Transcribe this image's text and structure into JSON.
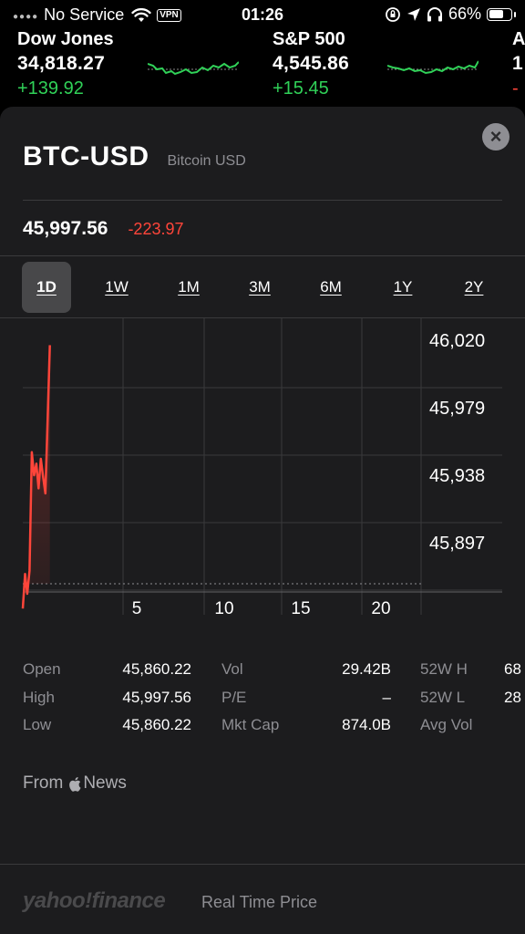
{
  "status_bar": {
    "carrier": "No Service",
    "vpn": "VPN",
    "time": "01:26",
    "battery": "66%"
  },
  "tickers": [
    {
      "name": "Dow Jones",
      "price": "34,818.27",
      "change": "+139.92"
    },
    {
      "name": "S&P 500",
      "price": "4,545.86",
      "change": "+15.45"
    },
    {
      "name": "A",
      "price": "1",
      "change": "-"
    }
  ],
  "header": {
    "symbol": "BTC-USD",
    "name": "Bitcoin USD",
    "close_icon": "close-icon"
  },
  "quote": {
    "price": "45,997.56",
    "change": "-223.97"
  },
  "ranges": [
    "1D",
    "1W",
    "1M",
    "3M",
    "6M",
    "1Y",
    "2Y"
  ],
  "selected_range": "1D",
  "chart_data": {
    "type": "line",
    "title": "",
    "xlabel": "",
    "ylabel": "",
    "x_ticks": [
      "5",
      "10",
      "15",
      "20"
    ],
    "y_ticks": [
      "46,020",
      "45,979",
      "45,938",
      "45,897"
    ],
    "ylim": [
      45855,
      46040
    ],
    "xlim": [
      0,
      24.5
    ],
    "previous_close": 45860.22,
    "series": [
      {
        "color": "#ff453a",
        "x": [
          0,
          0.15,
          0.3,
          0.45,
          0.6,
          0.75,
          0.9,
          1.05,
          1.2,
          1.35,
          1.5,
          1.65,
          1.8
        ],
        "y": [
          45857,
          45878,
          45866,
          45880,
          45952,
          45938,
          45945,
          45930,
          45948,
          45937,
          45927,
          45971,
          46017
        ]
      }
    ],
    "volume_indicator": "..l"
  },
  "stats": [
    {
      "label": "Open",
      "value": "45,860.22"
    },
    {
      "label": "High",
      "value": "45,997.56"
    },
    {
      "label": "Low",
      "value": "45,860.22"
    },
    {
      "label": "Vol",
      "value": "29.42B"
    },
    {
      "label": "P/E",
      "value": "–"
    },
    {
      "label": "Mkt Cap",
      "value": "874.0B"
    },
    {
      "label": "52W H",
      "value": "68"
    },
    {
      "label": "52W L",
      "value": "28"
    },
    {
      "label": "Avg Vol",
      "value": ""
    }
  ],
  "news": {
    "prefix": "From",
    "source": "News"
  },
  "footer": {
    "brand": "yahoo!finance",
    "label": "Real Time Price"
  }
}
